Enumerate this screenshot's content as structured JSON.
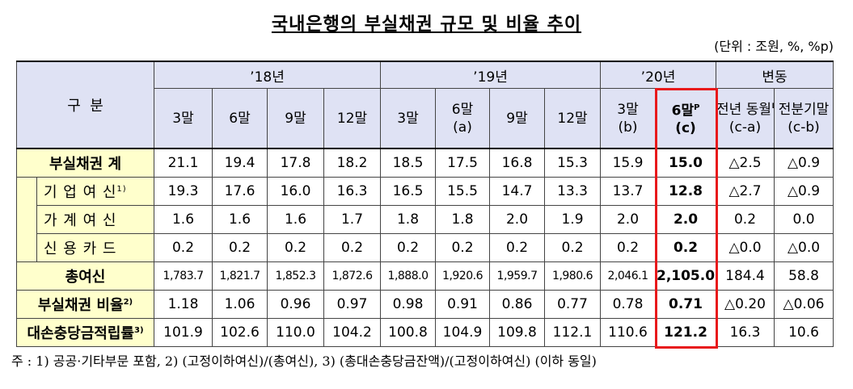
{
  "title": "국내은행의 부실채권 규모 및 비율 추이",
  "unit": "(단위 : 조원, %, %p)",
  "header": {
    "stub": "구  분",
    "groups": [
      "’18년",
      "’19년",
      "’20년",
      "변동"
    ],
    "group_spans": [
      4,
      4,
      2,
      2
    ],
    "columns": [
      {
        "label": "3말"
      },
      {
        "label": "6말"
      },
      {
        "label": "9말"
      },
      {
        "label": "12말"
      },
      {
        "label": "3말"
      },
      {
        "label": "6말",
        "note": "(a)"
      },
      {
        "label": "9말"
      },
      {
        "label": "12말"
      },
      {
        "label": "3말",
        "note": "(b)"
      },
      {
        "label": "6말",
        "sup": "P",
        "note": "(c)"
      },
      {
        "label": "전년 동월말",
        "note": "(c-a)"
      },
      {
        "label": "전분기말",
        "note": "(c-b)"
      }
    ]
  },
  "rows": [
    {
      "label": "부실채권 계",
      "values": [
        "21.1",
        "19.4",
        "17.8",
        "18.2",
        "18.5",
        "17.5",
        "16.8",
        "15.3",
        "15.9",
        "15.0",
        "△2.5",
        "△0.9"
      ]
    },
    {
      "label": "기 업 여 신",
      "note": "1)",
      "sub": true,
      "values": [
        "19.3",
        "17.6",
        "16.0",
        "16.3",
        "16.5",
        "15.5",
        "14.7",
        "13.3",
        "13.7",
        "12.8",
        "△2.7",
        "△0.9"
      ]
    },
    {
      "label": "가 계 여 신",
      "sub": true,
      "values": [
        "1.6",
        "1.6",
        "1.6",
        "1.7",
        "1.8",
        "1.8",
        "2.0",
        "1.9",
        "2.0",
        "2.0",
        "0.2",
        "0.0"
      ]
    },
    {
      "label": "신 용 카 드",
      "sub": true,
      "values": [
        "0.2",
        "0.2",
        "0.2",
        "0.2",
        "0.2",
        "0.2",
        "0.2",
        "0.2",
        "0.2",
        "0.2",
        "△0.0",
        "△0.0"
      ]
    },
    {
      "label": "총여신",
      "small": true,
      "values": [
        "1,783.7",
        "1,821.7",
        "1,852.3",
        "1,872.6",
        "1,888.0",
        "1,920.6",
        "1,959.7",
        "1,980.6",
        "2,046.1",
        "2,105.0",
        "184.4",
        "58.8"
      ]
    },
    {
      "label": "부실채권 비율",
      "note": "2)",
      "values": [
        "1.18",
        "1.06",
        "0.96",
        "0.97",
        "0.98",
        "0.91",
        "0.86",
        "0.77",
        "0.78",
        "0.71",
        "△0.20",
        "△0.06"
      ]
    },
    {
      "label": "대손충당금적립률",
      "note": "3)",
      "values": [
        "101.9",
        "102.6",
        "110.0",
        "104.2",
        "100.8",
        "104.9",
        "109.8",
        "112.1",
        "110.6",
        "121.2",
        "16.3",
        "10.6"
      ]
    }
  ],
  "highlight_column": 9,
  "footnote": "주 : 1) 공공·기타부문 포함, 2) (고정이하여신)/(총여신), 3) (총대손충당금잔액)/(고정이하여신) (이하 동일)"
}
